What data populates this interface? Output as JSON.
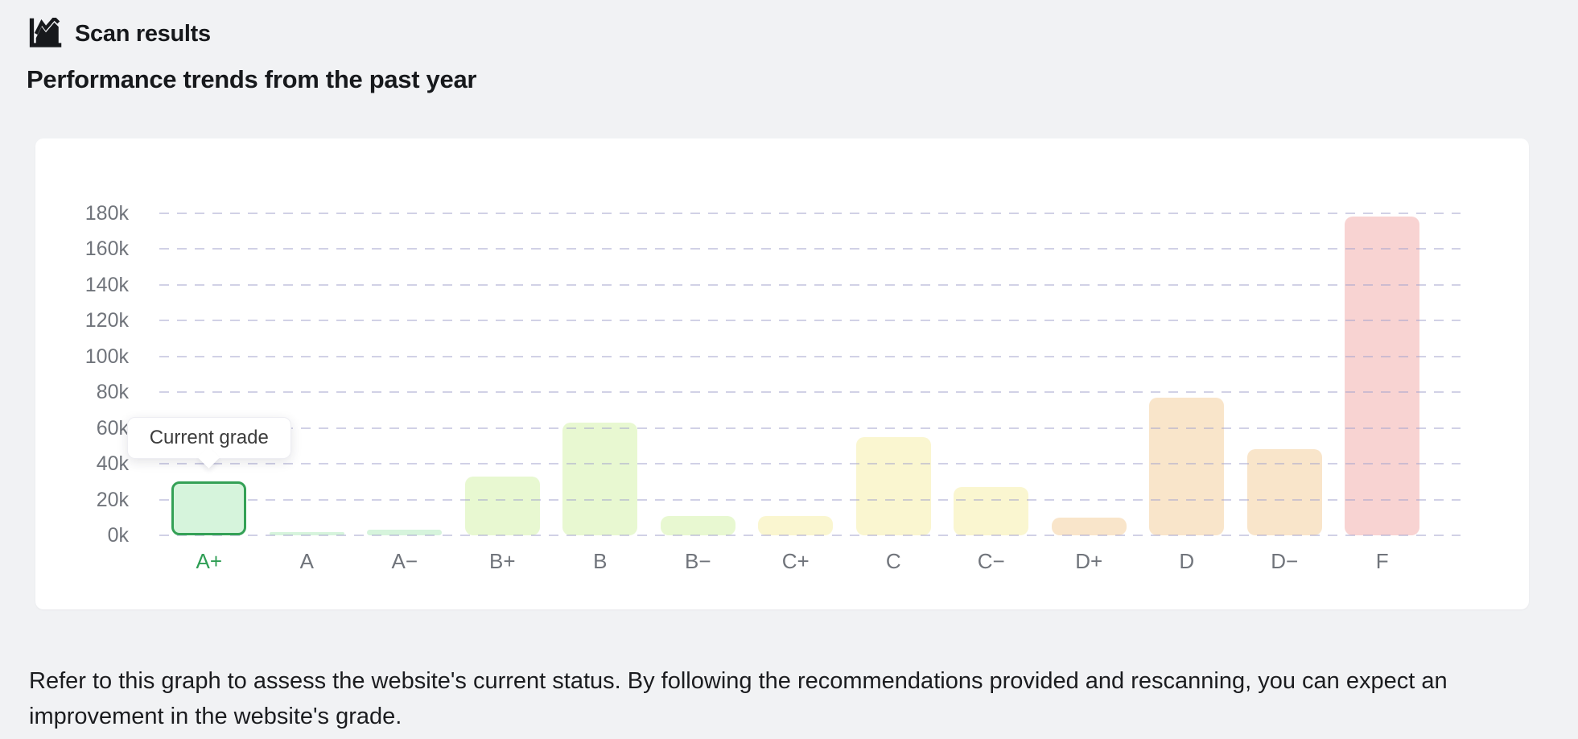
{
  "header": {
    "icon": "area-chart-icon",
    "title": "Scan results"
  },
  "subtitle": "Performance trends from the past year",
  "tooltip": {
    "label": "Current grade"
  },
  "footer": "Refer to this graph to assess the website's current status. By following the recommendations provided and rescanning, you can expect an improvement in the website's grade.",
  "chart_data": {
    "type": "bar",
    "title": "",
    "xlabel": "",
    "ylabel": "",
    "categories": [
      "A+",
      "A",
      "A−",
      "B+",
      "B",
      "B−",
      "C+",
      "C",
      "C−",
      "D+",
      "D",
      "D−",
      "F"
    ],
    "values": [
      30000,
      2000,
      3000,
      33000,
      63000,
      11000,
      11000,
      55000,
      27000,
      10000,
      77000,
      48000,
      178000
    ],
    "ylim": [
      0,
      180000
    ],
    "y_tick_labels": [
      "0k",
      "20k",
      "40k",
      "60k",
      "80k",
      "100k",
      "120k",
      "140k",
      "160k",
      "180k"
    ],
    "grid": "horizontal-dashed",
    "gridline_color": "#d8d8ec",
    "legend": "none",
    "axis_label_color": "#70747b",
    "bar_colors": [
      "#d6f4dc",
      "#d6f4dc",
      "#d6f4dc",
      "#e8f8d1",
      "#e8f8d1",
      "#e8f8d1",
      "#faf6d0",
      "#faf6d0",
      "#faf6d0",
      "#f9e5ca",
      "#f9e5ca",
      "#f9e5ca",
      "#f8d3d2"
    ],
    "highlight": {
      "index": 0,
      "category": "A+",
      "tooltip": "Current grade",
      "border_color": "#34a156",
      "label_color": "#2f9e55"
    }
  }
}
